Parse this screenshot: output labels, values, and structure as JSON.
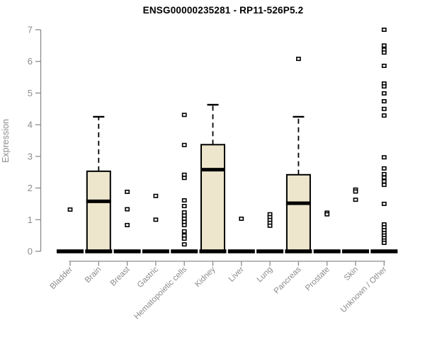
{
  "title": "ENSG00000235281 - RP11-526P5.2",
  "chart_data": {
    "type": "boxplot",
    "title": "ENSG00000235281 - RP11-526P5.2",
    "xlabel": "",
    "ylabel": "Expression",
    "ylim": [
      0,
      7
    ],
    "yticks": [
      0,
      1,
      2,
      3,
      4,
      5,
      6,
      7
    ],
    "grid": false,
    "legend": "none",
    "categories": [
      "Bladder",
      "Brain",
      "Breast",
      "Gastric",
      "Hematopoietic cells",
      "Kidney",
      "Liver",
      "Lung",
      "Pancreas",
      "Prostate",
      "Skin",
      "Unknown / Other"
    ],
    "boxes": [
      {
        "category": "Bladder",
        "q1": 0,
        "median": 0,
        "q3": 0,
        "whisker_low": 0,
        "whisker_high": 0,
        "outliers": [
          1.32
        ]
      },
      {
        "category": "Brain",
        "q1": 0,
        "median": 1.58,
        "q3": 2.53,
        "whisker_low": 0,
        "whisker_high": 4.25,
        "outliers": []
      },
      {
        "category": "Breast",
        "q1": 0,
        "median": 0,
        "q3": 0,
        "whisker_low": 0,
        "whisker_high": 0,
        "outliers": [
          1.88,
          1.33,
          0.83
        ]
      },
      {
        "category": "Gastric",
        "q1": 0,
        "median": 0,
        "q3": 0,
        "whisker_low": 0,
        "whisker_high": 0,
        "outliers": [
          1.75,
          1.0
        ]
      },
      {
        "category": "Hematopoietic cells",
        "q1": 0,
        "median": 0,
        "q3": 0,
        "whisker_low": 0,
        "whisker_high": 0,
        "outliers": [
          4.31,
          3.36,
          2.42,
          2.32,
          1.61,
          1.43,
          1.23,
          1.13,
          1.03,
          0.93,
          0.83,
          0.63,
          0.5,
          0.4,
          0.22
        ]
      },
      {
        "category": "Kidney",
        "q1": 0,
        "median": 2.58,
        "q3": 3.37,
        "whisker_low": 0,
        "whisker_high": 4.63,
        "outliers": []
      },
      {
        "category": "Liver",
        "q1": 0,
        "median": 0,
        "q3": 0,
        "whisker_low": 0,
        "whisker_high": 0,
        "outliers": [
          1.03
        ]
      },
      {
        "category": "Lung",
        "q1": 0,
        "median": 0,
        "q3": 0,
        "whisker_low": 0,
        "whisker_high": 0,
        "outliers": [
          1.17,
          1.08,
          0.99,
          0.9,
          0.81
        ]
      },
      {
        "category": "Pancreas",
        "q1": 0,
        "median": 1.52,
        "q3": 2.42,
        "whisker_low": 0,
        "whisker_high": 4.25,
        "outliers": [
          6.08
        ]
      },
      {
        "category": "Prostate",
        "q1": 0,
        "median": 0,
        "q3": 0,
        "whisker_low": 0,
        "whisker_high": 0,
        "outliers": [
          1.22,
          1.17
        ]
      },
      {
        "category": "Skin",
        "q1": 0,
        "median": 0,
        "q3": 0,
        "whisker_low": 0,
        "whisker_high": 0,
        "outliers": [
          1.95,
          1.89,
          1.63
        ]
      },
      {
        "category": "Unknown / Other",
        "q1": 0,
        "median": 0,
        "q3": 0,
        "whisker_low": 0,
        "whisker_high": 0,
        "outliers": [
          7.0,
          6.5,
          6.37,
          6.28,
          5.86,
          5.3,
          5.21,
          4.99,
          4.74,
          4.5,
          4.29,
          2.97,
          2.62,
          2.44,
          2.33,
          2.21,
          2.1,
          1.5,
          0.85,
          0.76,
          0.67,
          0.58,
          0.5,
          0.42,
          0.34,
          0.27
        ]
      }
    ],
    "colors": {
      "box_fill": "#EDE6CD",
      "box_stroke": "#000000",
      "median": "#000000",
      "whisker": "#000000",
      "outlier_fill": "#FFFFFF",
      "axis": "#8C8C8C",
      "tick_label": "#8C8C8C",
      "title": "#000000",
      "background": "#FFFFFF"
    }
  }
}
